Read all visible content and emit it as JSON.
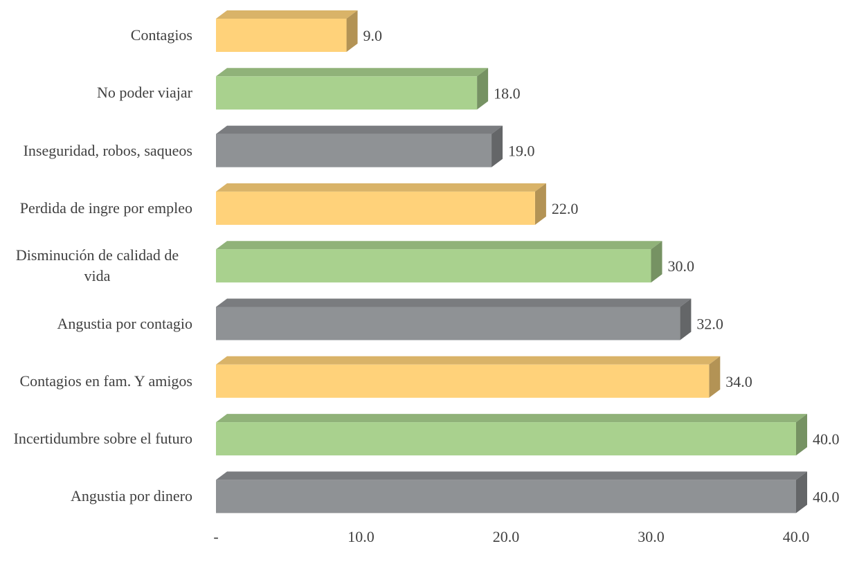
{
  "chart_data": {
    "type": "bar",
    "orientation": "horizontal",
    "categories": [
      "Contagios",
      "No poder viajar",
      "Inseguridad, robos, saqueos",
      "Perdida de ingre por empleo",
      "Disminución de calidad de vida",
      "Angustia por contagio",
      "Contagios en fam. Y amigos",
      "Incertidumbre sobre el futuro",
      "Angustia por dinero"
    ],
    "values": [
      9,
      18,
      19,
      22,
      30,
      32,
      34,
      40,
      40
    ],
    "value_labels": [
      "9.0",
      "18.0",
      "19.0",
      "22.0",
      "30.0",
      "32.0",
      "34.0",
      "40.0",
      "40.0"
    ],
    "colors": [
      "#ffd27a",
      "#a9d18e",
      "#8f9295",
      "#ffd27a",
      "#a9d18e",
      "#8f9295",
      "#ffd27a",
      "#a9d18e",
      "#8f9295"
    ],
    "xlim": [
      0,
      40
    ],
    "xticks": [
      {
        "value": 0,
        "label": "-"
      },
      {
        "value": 10,
        "label": "10.0"
      },
      {
        "value": 20,
        "label": "20.0"
      },
      {
        "value": 30,
        "label": "30.0"
      },
      {
        "value": 40,
        "label": "40.0"
      }
    ],
    "grid": false
  }
}
